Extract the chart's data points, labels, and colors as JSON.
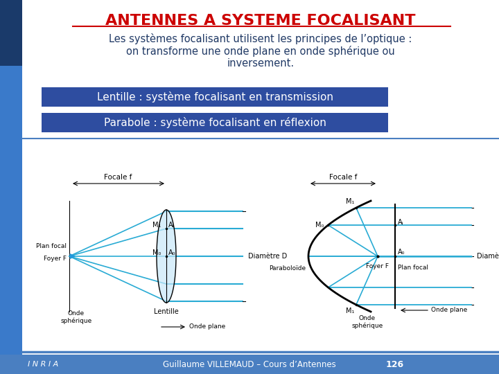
{
  "title": "ANTENNES A SYSTEME FOCALISANT",
  "title_color": "#CC0000",
  "body_text_line1": "Les systèmes focalisant utilisent les principes de l’optique :",
  "body_text_line2": "on transforme une onde plane en onde sphérique ou",
  "body_text_line3": "inversement.",
  "body_text_color": "#1F3864",
  "box1_text": "Lentille : système focalisant en transmission",
  "box2_text": "Parabole : système focalisant en réflexion",
  "box_bg_color": "#2E4DA0",
  "box_text_color": "#FFFFFF",
  "slide_bg_color": "#FFFFFF",
  "footer_text": "Guillaume VILLEMAUD – Cours d’Antennes",
  "footer_page": "126",
  "diagram_line_color": "#29ABD4",
  "bottom_bar_color": "#4A7FC1",
  "left_bar_top_color": "#2255AA",
  "left_bar_bottom_color": "#4488DD"
}
